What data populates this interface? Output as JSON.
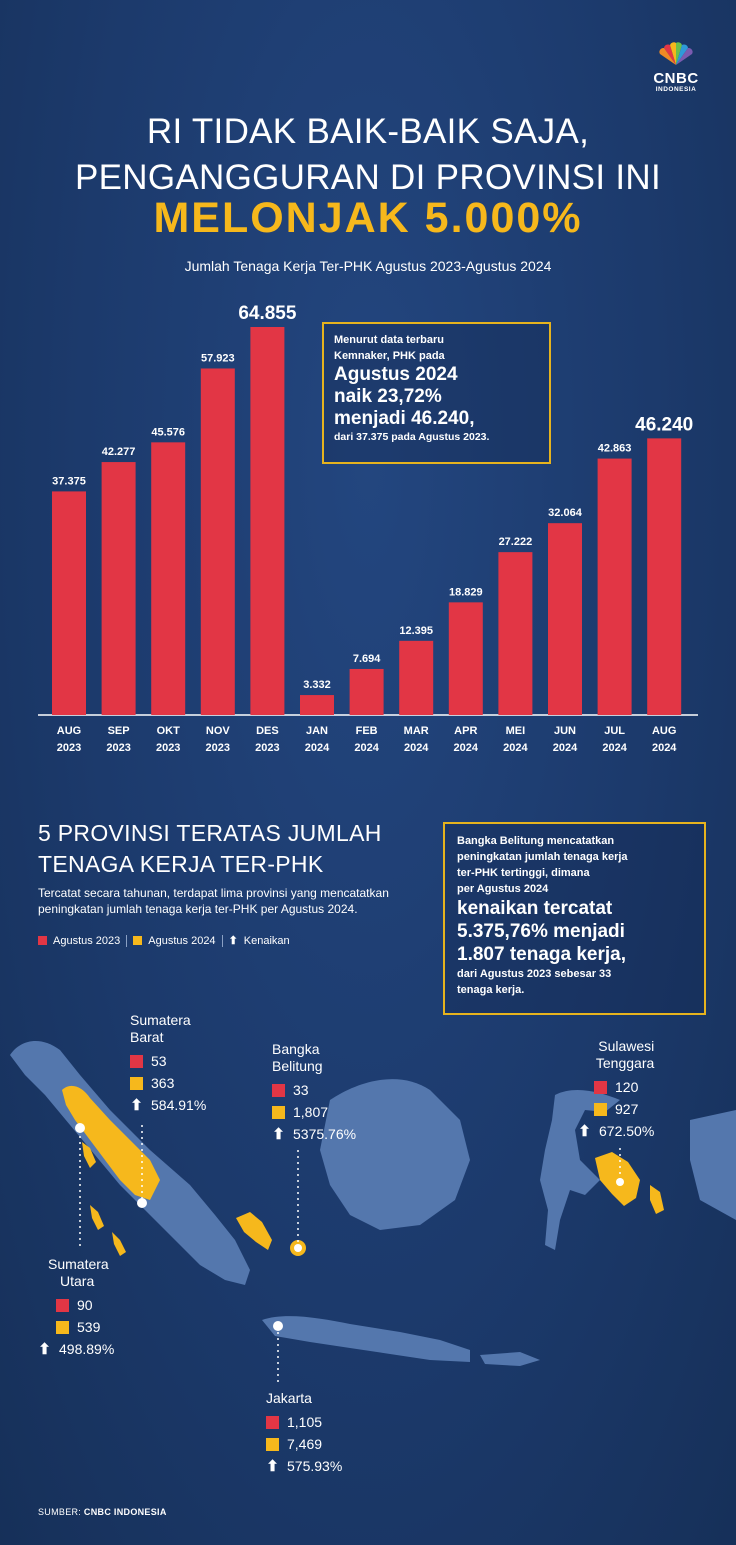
{
  "brand": {
    "name": "CNBC",
    "sub": "INDONESIA"
  },
  "header": {
    "title_line1": "RI TIDAK BAIK-BAIK SAJA,",
    "title_line2": "PENGANGGURAN DI PROVINSI INI",
    "title_line3": "MELONJAK 5.000%",
    "subtitle": "Jumlah Tenaga Kerja Ter-PHK Agustus 2023-Agustus 2024"
  },
  "colors": {
    "bar": "#e23645",
    "accent": "#f6b81c",
    "map": "#5477ad",
    "highlight": "#f6b81c"
  },
  "chart_data": {
    "type": "bar",
    "title": "Jumlah Tenaga Kerja Ter-PHK Agustus 2023-Agustus 2024",
    "categories": [
      [
        "AUG",
        "2023"
      ],
      [
        "SEP",
        "2023"
      ],
      [
        "OKT",
        "2023"
      ],
      [
        "NOV",
        "2023"
      ],
      [
        "DES",
        "2023"
      ],
      [
        "JAN",
        "2024"
      ],
      [
        "FEB",
        "2024"
      ],
      [
        "MAR",
        "2024"
      ],
      [
        "APR",
        "2024"
      ],
      [
        "MEI",
        "2024"
      ],
      [
        "JUN",
        "2024"
      ],
      [
        "JUL",
        "2024"
      ],
      [
        "AUG",
        "2024"
      ]
    ],
    "values": [
      37375,
      42277,
      45576,
      57923,
      64855,
      3332,
      7694,
      12395,
      18829,
      27222,
      32064,
      42863,
      46240
    ],
    "labels": [
      "37.375",
      "42.277",
      "45.576",
      "57.923",
      "64.855",
      "3.332",
      "7.694",
      "12.395",
      "18.829",
      "27.222",
      "32.064",
      "42.863",
      "46.240"
    ],
    "emphasized_labels": [
      4,
      12
    ],
    "ylim": [
      0,
      64855
    ],
    "grid": false,
    "legend": "none"
  },
  "callout1": {
    "line1": "Menurut data terbaru",
    "line2": "Kemnaker, PHK pada",
    "line3": "Agustus 2024",
    "line4": "naik 23,72%",
    "line5": "menjadi 46.240,",
    "line6": "dari 37.375 pada Agustus 2023."
  },
  "section2": {
    "title_line1": "5 PROVINSI TERATAS JUMLAH",
    "title_line2": "TENAGA KERJA TER-PHK",
    "desc": "Tercatat secara tahunan, terdapat lima provinsi yang mencatatkan peningkatan jumlah tenaga kerja ter-PHK per Agustus 2024.",
    "legend": {
      "a": "Agustus 2023",
      "b": "Agustus 2024",
      "c": "Kenaikan"
    }
  },
  "callout2": {
    "line1": "Bangka Belitung mencatatkan",
    "line2": "peningkatan jumlah tenaga kerja",
    "line3": "ter-PHK tertinggi, dimana",
    "line4": "per Agustus 2024",
    "line5": "kenaikan tercatat",
    "line6": "5.375,76% menjadi",
    "line7": "1.807 tenaga kerja,",
    "line8": "dari Agustus 2023 sebesar 33",
    "line9": "tenaga kerja."
  },
  "provinces": {
    "sumbar": {
      "name1": "Sumatera",
      "name2": "Barat",
      "v2023": "53",
      "v2024": "363",
      "growth": "584.91%"
    },
    "babel": {
      "name1": "Bangka",
      "name2": "Belitung",
      "v2023": "33",
      "v2024": "1,807",
      "growth": "5375.76%"
    },
    "sultra": {
      "name1": "Sulawesi",
      "name2": "Tenggara",
      "v2023": "120",
      "v2024": "927",
      "growth": "672.50%"
    },
    "sumut": {
      "name1": "Sumatera",
      "name2": "Utara",
      "v2023": "90",
      "v2024": "539",
      "growth": "498.89%"
    },
    "jakarta": {
      "name1": "Jakarta",
      "v2023": "1,105",
      "v2024": "7,469",
      "growth": "575.93%"
    }
  },
  "source": {
    "label": "SUMBER:",
    "value": "CNBC INDONESIA"
  }
}
